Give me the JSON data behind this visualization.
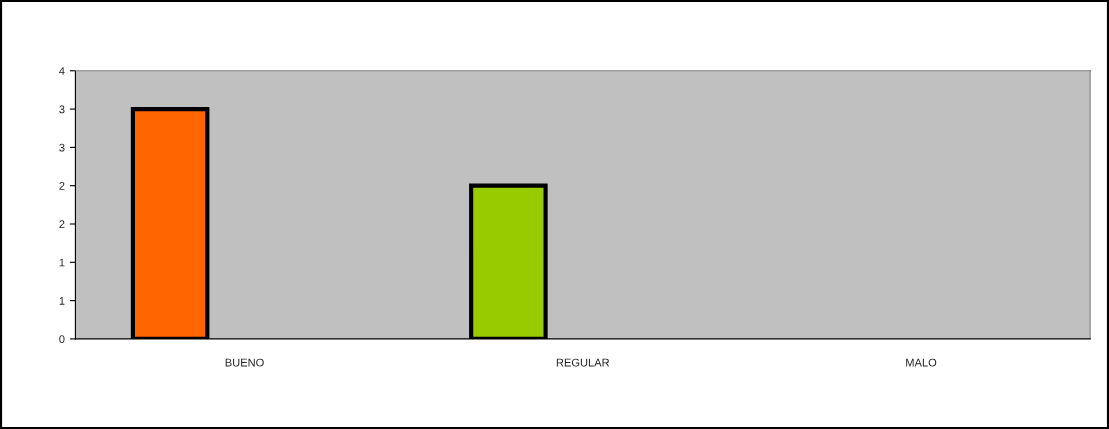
{
  "chart_data": {
    "type": "bar",
    "categories": [
      "BUENO",
      "REGULAR",
      "MALO"
    ],
    "values": [
      3,
      2,
      0
    ],
    "colors": [
      "#ff6600",
      "#99cc00",
      "#3366ff"
    ],
    "ylim": [
      0,
      3.5
    ],
    "yticks": [
      0,
      {
        "value": 0.5,
        "label": "1"
      },
      1,
      {
        "value": 1.5,
        "label": "2"
      },
      2,
      {
        "value": 2.5,
        "label": "3"
      },
      3,
      {
        "value": 3.5,
        "label": "4"
      }
    ],
    "grid": false,
    "legend": false
  }
}
